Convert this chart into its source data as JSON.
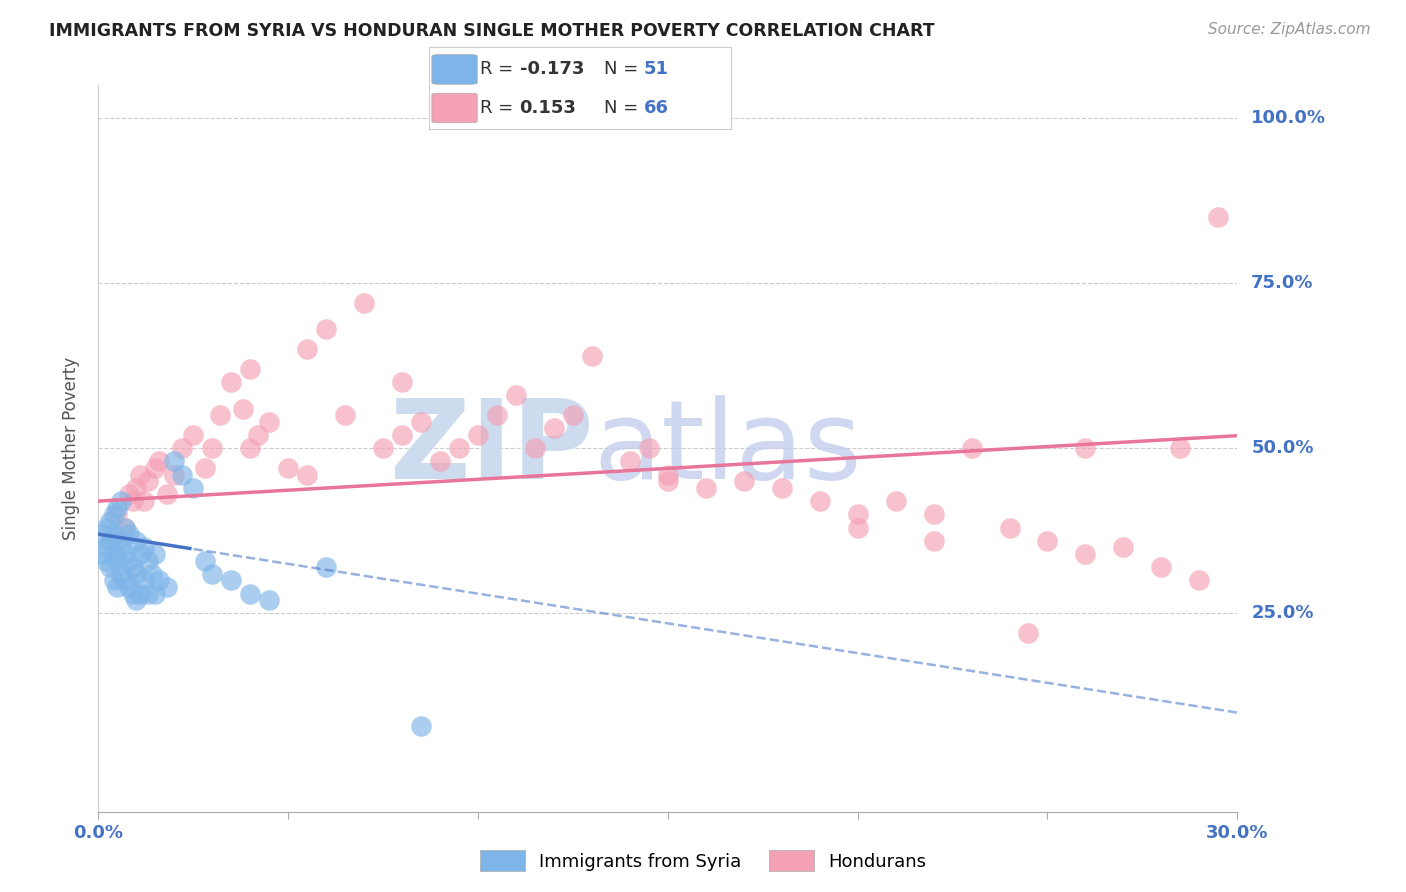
{
  "title": "IMMIGRANTS FROM SYRIA VS HONDURAN SINGLE MOTHER POVERTY CORRELATION CHART",
  "source": "Source: ZipAtlas.com",
  "ylabel": "Single Mother Poverty",
  "xmin": 0.0,
  "xmax": 0.3,
  "ymin": 0.0,
  "ymax": 1.05,
  "legend_syria_R": "-0.173",
  "legend_syria_N": "51",
  "legend_honduran_R": "0.153",
  "legend_honduran_N": "66",
  "syria_color": "#7EB5E8",
  "honduras_color": "#F4A0B5",
  "syria_line_color": "#4472C4",
  "honduras_line_color": "#E8759A",
  "syria_x": [
    0.001,
    0.001,
    0.002,
    0.002,
    0.002,
    0.003,
    0.003,
    0.003,
    0.004,
    0.004,
    0.004,
    0.004,
    0.005,
    0.005,
    0.005,
    0.005,
    0.006,
    0.006,
    0.006,
    0.007,
    0.007,
    0.007,
    0.008,
    0.008,
    0.008,
    0.009,
    0.009,
    0.01,
    0.01,
    0.01,
    0.011,
    0.011,
    0.012,
    0.012,
    0.013,
    0.013,
    0.014,
    0.015,
    0.015,
    0.016,
    0.018,
    0.02,
    0.022,
    0.025,
    0.028,
    0.03,
    0.035,
    0.04,
    0.045,
    0.06,
    0.085
  ],
  "syria_y": [
    0.34,
    0.37,
    0.33,
    0.35,
    0.38,
    0.32,
    0.36,
    0.39,
    0.3,
    0.34,
    0.37,
    0.4,
    0.29,
    0.33,
    0.36,
    0.41,
    0.31,
    0.35,
    0.42,
    0.3,
    0.34,
    0.38,
    0.29,
    0.33,
    0.37,
    0.28,
    0.32,
    0.27,
    0.31,
    0.36,
    0.28,
    0.34,
    0.3,
    0.35,
    0.28,
    0.33,
    0.31,
    0.28,
    0.34,
    0.3,
    0.29,
    0.48,
    0.46,
    0.44,
    0.33,
    0.31,
    0.3,
    0.28,
    0.27,
    0.32,
    0.08
  ],
  "honduras_x": [
    0.005,
    0.007,
    0.008,
    0.009,
    0.01,
    0.011,
    0.012,
    0.013,
    0.015,
    0.016,
    0.018,
    0.02,
    0.022,
    0.025,
    0.028,
    0.03,
    0.032,
    0.035,
    0.038,
    0.04,
    0.042,
    0.045,
    0.05,
    0.055,
    0.06,
    0.065,
    0.07,
    0.075,
    0.08,
    0.085,
    0.09,
    0.095,
    0.1,
    0.105,
    0.11,
    0.115,
    0.12,
    0.125,
    0.13,
    0.14,
    0.145,
    0.15,
    0.16,
    0.17,
    0.18,
    0.19,
    0.2,
    0.21,
    0.22,
    0.23,
    0.24,
    0.25,
    0.26,
    0.27,
    0.28,
    0.29,
    0.04,
    0.055,
    0.08,
    0.15,
    0.2,
    0.22,
    0.245,
    0.26,
    0.285,
    0.295
  ],
  "honduras_y": [
    0.4,
    0.38,
    0.43,
    0.42,
    0.44,
    0.46,
    0.42,
    0.45,
    0.47,
    0.48,
    0.43,
    0.46,
    0.5,
    0.52,
    0.47,
    0.5,
    0.55,
    0.6,
    0.56,
    0.5,
    0.52,
    0.54,
    0.47,
    0.46,
    0.68,
    0.55,
    0.72,
    0.5,
    0.52,
    0.54,
    0.48,
    0.5,
    0.52,
    0.55,
    0.58,
    0.5,
    0.53,
    0.55,
    0.64,
    0.48,
    0.5,
    0.46,
    0.44,
    0.45,
    0.44,
    0.42,
    0.4,
    0.42,
    0.4,
    0.5,
    0.38,
    0.36,
    0.34,
    0.35,
    0.32,
    0.3,
    0.62,
    0.65,
    0.6,
    0.45,
    0.38,
    0.36,
    0.22,
    0.5,
    0.5,
    0.85
  ]
}
